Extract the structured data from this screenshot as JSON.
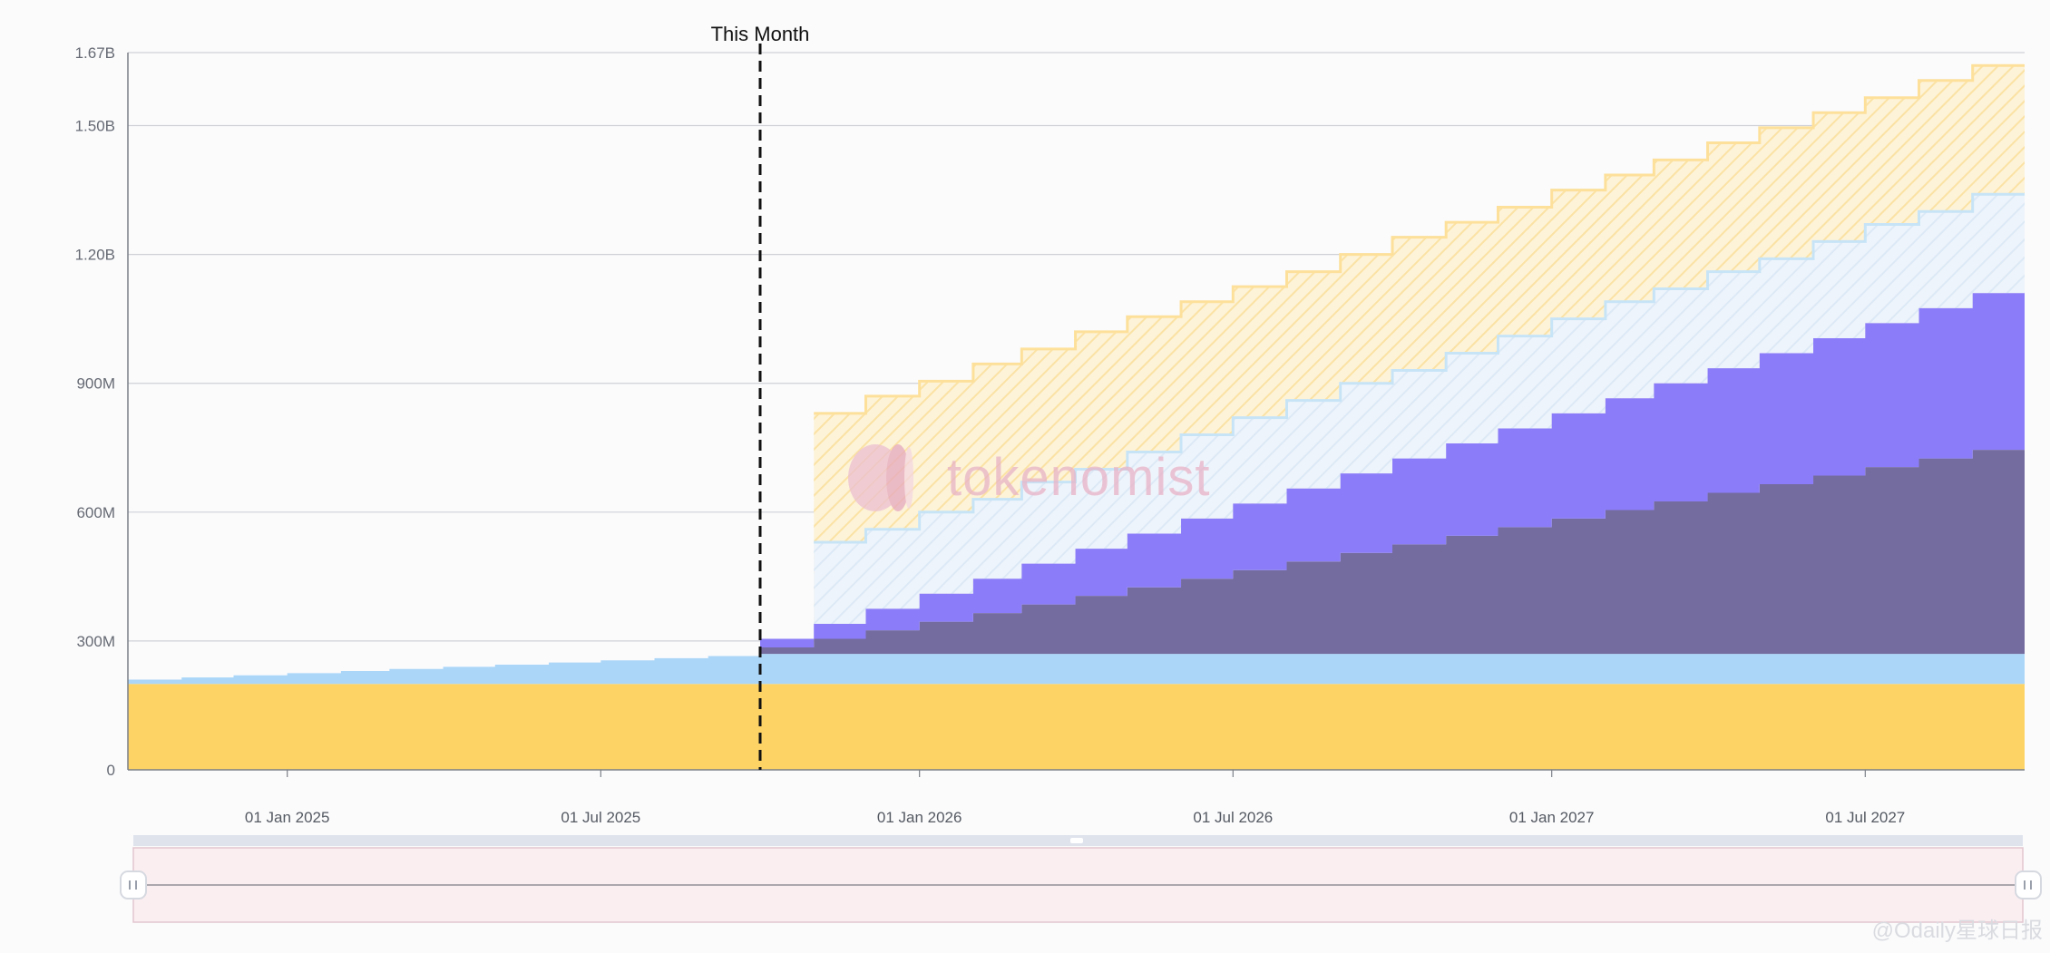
{
  "chart_data": {
    "type": "area",
    "chart_style": "stacked step area (token unlock schedule)",
    "y_ticks": [
      "0",
      "300M",
      "600M",
      "900M",
      "1.20B",
      "1.50B",
      "1.67B"
    ],
    "y_tick_values": [
      0,
      300,
      600,
      900,
      1200,
      1500,
      1670
    ],
    "y_units": "millions of tokens",
    "ylim": [
      0,
      1670
    ],
    "x_ticks": [
      "01 Jan 2025",
      "01 Jul 2025",
      "01 Jan 2026",
      "01 Jul 2026",
      "01 Jan 2027",
      "01 Jul 2027"
    ],
    "x_tick_dates": [
      "2025-01-01",
      "2025-07-01",
      "2026-01-01",
      "2026-07-01",
      "2027-01-01",
      "2027-07-01"
    ],
    "xlim": [
      "2024-10-01",
      "2027-10-01"
    ],
    "marker": {
      "label": "This Month",
      "date": "2025-10-01",
      "style": "dashed vertical line"
    },
    "grid": true,
    "legend": "none",
    "months": [
      "2024-10",
      "2024-11",
      "2024-12",
      "2025-01",
      "2025-02",
      "2025-03",
      "2025-04",
      "2025-05",
      "2025-06",
      "2025-07",
      "2025-08",
      "2025-09",
      "2025-10",
      "2025-11",
      "2025-12",
      "2026-01",
      "2026-02",
      "2026-03",
      "2026-04",
      "2026-05",
      "2026-06",
      "2026-07",
      "2026-08",
      "2026-09",
      "2026-10",
      "2026-11",
      "2026-12",
      "2027-01",
      "2027-02",
      "2027-03",
      "2027-04",
      "2027-05",
      "2027-06",
      "2027-07",
      "2027-08",
      "2027-09"
    ],
    "series": [
      {
        "color": "#fdd365",
        "kind": "filled",
        "values": [
          200,
          200,
          200,
          200,
          200,
          200,
          200,
          200,
          200,
          200,
          200,
          200,
          200,
          200,
          200,
          200,
          200,
          200,
          200,
          200,
          200,
          200,
          200,
          200,
          200,
          200,
          200,
          200,
          200,
          200,
          200,
          200,
          200,
          200,
          200,
          200
        ]
      },
      {
        "color": "#abd6f8",
        "kind": "filled",
        "values": [
          10,
          15,
          20,
          25,
          30,
          35,
          40,
          45,
          50,
          55,
          60,
          65,
          70,
          70,
          70,
          70,
          70,
          70,
          70,
          70,
          70,
          70,
          70,
          70,
          70,
          70,
          70,
          70,
          70,
          70,
          70,
          70,
          70,
          70,
          70,
          70
        ]
      },
      {
        "color": "#746b9e",
        "kind": "filled",
        "values": [
          0,
          0,
          0,
          0,
          0,
          0,
          0,
          0,
          0,
          0,
          0,
          0,
          15,
          35,
          55,
          75,
          95,
          115,
          135,
          155,
          175,
          195,
          215,
          235,
          255,
          275,
          295,
          315,
          335,
          355,
          375,
          395,
          415,
          435,
          455,
          475
        ]
      },
      {
        "color": "#8b7df9",
        "kind": "filled",
        "values": [
          0,
          0,
          0,
          0,
          0,
          0,
          0,
          0,
          0,
          0,
          0,
          0,
          20,
          35,
          50,
          65,
          80,
          95,
          110,
          125,
          140,
          155,
          170,
          185,
          200,
          215,
          230,
          245,
          260,
          275,
          290,
          305,
          320,
          335,
          350,
          365
        ]
      }
    ],
    "projection_bands": [
      {
        "color": "#c7e4f7",
        "kind": "hatched outline projection",
        "start_month_index": 13,
        "values": [
          530,
          560,
          600,
          630,
          670,
          700,
          740,
          780,
          820,
          860,
          900,
          930,
          970,
          1010,
          1050,
          1090,
          1120,
          1160,
          1190,
          1230,
          1270,
          1300,
          1340
        ]
      },
      {
        "color": "#fde09a",
        "kind": "hatched outline projection",
        "start_month_index": 13,
        "values": [
          830,
          870,
          905,
          945,
          980,
          1020,
          1055,
          1090,
          1125,
          1160,
          1200,
          1240,
          1275,
          1310,
          1350,
          1385,
          1420,
          1460,
          1495,
          1530,
          1565,
          1605,
          1640
        ]
      }
    ]
  },
  "watermark": {
    "text": "tokenomist"
  },
  "credit": {
    "text": "@Odaily星球日报"
  },
  "navigator": {
    "range_start": "2024-10-01",
    "range_end": "2027-10-01"
  }
}
